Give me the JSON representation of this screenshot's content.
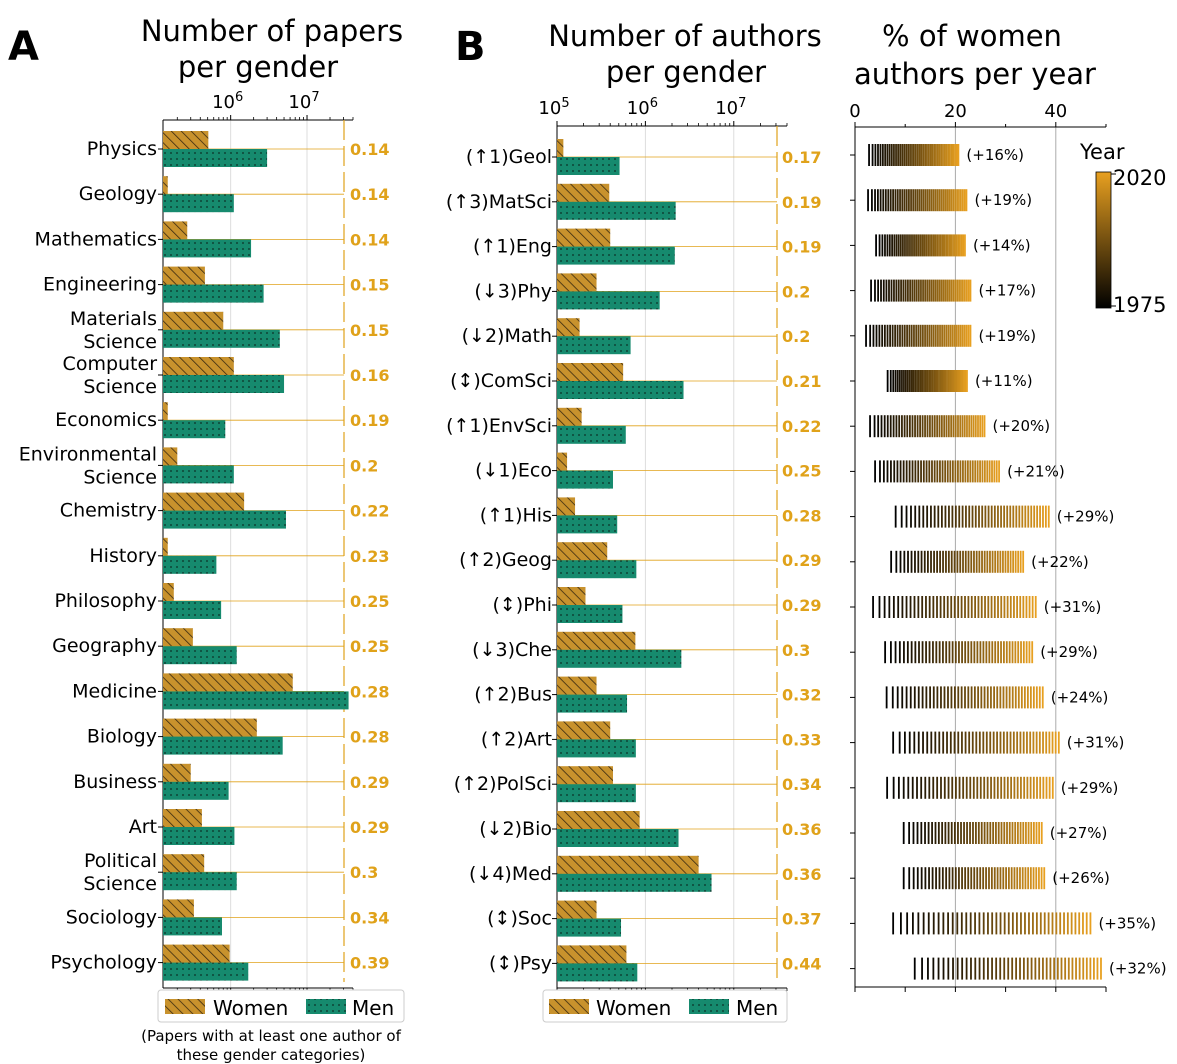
{
  "colors": {
    "women": "#c8922d",
    "men": "#168a6e",
    "ratio": "#e0a21a",
    "year_start": "#000000",
    "year_end": "#e8a020"
  },
  "panel_a": {
    "letter": "A",
    "title_line1": "Number of papers",
    "title_line2": "per gender",
    "note_line1": "(Papers with at least one author of",
    "note_line2": "these gender categories)"
  },
  "panel_b": {
    "letter": "B",
    "title_line1": "Number of authors",
    "title_line2": "per gender"
  },
  "panel_c": {
    "title_line1": "% of women",
    "title_line2": "authors per year",
    "colorbar_label": "Year",
    "colorbar_max": "2020",
    "colorbar_min": "1975"
  },
  "legend": {
    "women": "Women",
    "men": "Men"
  },
  "chart_data": [
    {
      "type": "bar",
      "orientation": "horizontal",
      "xscale": "log",
      "xlim": [
        130000,
        40000000
      ],
      "xticks": [
        {
          "base": "10",
          "exp": "6",
          "value": 1000000
        },
        {
          "base": "10",
          "exp": "7",
          "value": 10000000
        }
      ],
      "categories": [
        "Physics",
        "Geology",
        "Mathematics",
        "Engineering",
        "Materials Science",
        "Computer Science",
        "Economics",
        "Environmental Science",
        "Chemistry",
        "History",
        "Philosophy",
        "Geography",
        "Medicine",
        "Biology",
        "Business",
        "Art",
        "Political Science",
        "Sociology",
        "Psychology"
      ],
      "label_lines": [
        [
          "Physics"
        ],
        [
          "Geology"
        ],
        [
          "Mathematics"
        ],
        [
          "Engineering"
        ],
        [
          "Materials",
          "Science"
        ],
        [
          "Computer",
          "Science"
        ],
        [
          "Economics"
        ],
        [
          "Environmental",
          "Science"
        ],
        [
          "Chemistry"
        ],
        [
          "History"
        ],
        [
          "Philosophy"
        ],
        [
          "Geography"
        ],
        [
          "Medicine"
        ],
        [
          "Biology"
        ],
        [
          "Business"
        ],
        [
          "Art"
        ],
        [
          "Political",
          "Science"
        ],
        [
          "Sociology"
        ],
        [
          "Psychology"
        ]
      ],
      "series": [
        {
          "name": "Women",
          "values": [
            510000,
            150000,
            270000,
            460000,
            800000,
            1100000,
            150000,
            200000,
            1500000,
            150000,
            180000,
            320000,
            6500000,
            2200000,
            300000,
            420000,
            450000,
            330000,
            970000
          ]
        },
        {
          "name": "Men",
          "values": [
            3000000,
            1100000,
            1850000,
            2700000,
            4400000,
            5000000,
            850000,
            1100000,
            5300000,
            650000,
            750000,
            1200000,
            35000000,
            4800000,
            940000,
            1120000,
            1200000,
            770000,
            1700000
          ]
        }
      ],
      "ratios": [
        "0.14",
        "0.14",
        "0.14",
        "0.15",
        "0.15",
        "0.16",
        "0.19",
        "0.2",
        "0.22",
        "0.23",
        "0.25",
        "0.25",
        "0.28",
        "0.28",
        "0.29",
        "0.29",
        "0.3",
        "0.34",
        "0.39"
      ]
    },
    {
      "type": "bar",
      "orientation": "horizontal",
      "xscale": "log",
      "xlim": [
        100000,
        40000000
      ],
      "xticks": [
        {
          "base": "10",
          "exp": "5",
          "value": 100000
        },
        {
          "base": "10",
          "exp": "6",
          "value": 1000000
        },
        {
          "base": "10",
          "exp": "7",
          "value": 10000000
        }
      ],
      "categories": [
        "(↑1)Geol",
        "(↑3)MatSci",
        "(↑1)Eng",
        "(↓3)Phy",
        "(↓2)Math",
        "(↕)ComSci",
        "(↑1)EnvSci",
        "(↓1)Eco",
        "(↑1)His",
        "(↑2)Geog",
        "(↕)Phi",
        "(↓3)Che",
        "(↑2)Bus",
        "(↑2)Art",
        "(↑2)PolSci",
        "(↓2)Bio",
        "(↓4)Med",
        "(↕)Soc",
        "(↕)Psy"
      ],
      "series": [
        {
          "name": "Women",
          "values": [
            118000,
            390000,
            400000,
            280000,
            180000,
            560000,
            190000,
            130000,
            160000,
            370000,
            210000,
            770000,
            280000,
            400000,
            430000,
            860000,
            4000000,
            280000,
            610000
          ]
        },
        {
          "name": "Men",
          "values": [
            510000,
            2200000,
            2150000,
            1450000,
            680000,
            2700000,
            600000,
            430000,
            480000,
            790000,
            550000,
            2550000,
            620000,
            780000,
            780000,
            2370000,
            5600000,
            530000,
            810000
          ]
        }
      ],
      "ratios": [
        "0.17",
        "0.19",
        "0.19",
        "0.2",
        "0.2",
        "0.21",
        "0.22",
        "0.25",
        "0.28",
        "0.29",
        "0.29",
        "0.3",
        "0.32",
        "0.33",
        "0.34",
        "0.36",
        "0.36",
        "0.37",
        "0.44"
      ]
    },
    {
      "type": "scatter",
      "marker": "vertical-line",
      "xlim": [
        0,
        50
      ],
      "xticks": [
        0,
        20,
        40
      ],
      "color_by": "year",
      "year_range": [
        1975,
        2020
      ],
      "rows": [
        {
          "range": [
            2.8,
            20.6
          ],
          "change": "(+16%)"
        },
        {
          "range": [
            2.6,
            22.2
          ],
          "change": "(+19%)"
        },
        {
          "range": [
            4.2,
            21.9
          ],
          "change": "(+14%)"
        },
        {
          "range": [
            3.2,
            23.0
          ],
          "change": "(+17%)"
        },
        {
          "range": [
            2.2,
            23.0
          ],
          "change": "(+19%)"
        },
        {
          "range": [
            6.5,
            22.3
          ],
          "change": "(+11%)"
        },
        {
          "range": [
            3.0,
            25.8
          ],
          "change": "(+20%)"
        },
        {
          "range": [
            4.0,
            28.7
          ],
          "change": "(+21%)"
        },
        {
          "range": [
            8.1,
            38.6
          ],
          "change": "(+29%)"
        },
        {
          "range": [
            7.2,
            33.5
          ],
          "change": "(+22%)"
        },
        {
          "range": [
            3.6,
            36.0
          ],
          "change": "(+31%)"
        },
        {
          "range": [
            6.0,
            35.3
          ],
          "change": "(+29%)"
        },
        {
          "range": [
            6.3,
            37.4
          ],
          "change": "(+24%)"
        },
        {
          "range": [
            7.6,
            40.6
          ],
          "change": "(+31%)"
        },
        {
          "range": [
            6.4,
            39.4
          ],
          "change": "(+29%)"
        },
        {
          "range": [
            9.7,
            37.2
          ],
          "change": "(+27%)"
        },
        {
          "range": [
            9.7,
            37.7
          ],
          "change": "(+26%)"
        },
        {
          "range": [
            7.6,
            46.9
          ],
          "change": "(+35%)"
        },
        {
          "range": [
            11.9,
            49.0
          ],
          "change": "(+32%)"
        }
      ]
    }
  ]
}
